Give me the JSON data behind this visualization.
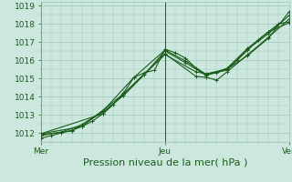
{
  "title": "",
  "xlabel": "Pression niveau de la mer( hPa )",
  "ylabel": "",
  "bg_color": "#cce8de",
  "grid_color": "#9dc4b8",
  "line_color": "#1a5c1a",
  "ylim": [
    1011.5,
    1019.2
  ],
  "xlim": [
    0,
    48
  ],
  "xtick_positions": [
    0,
    24,
    48
  ],
  "xtick_labels": [
    "Mer",
    "Jeu",
    "Ven"
  ],
  "ytick_positions": [
    1012,
    1013,
    1014,
    1015,
    1016,
    1017,
    1018,
    1019
  ],
  "vline_positions": [
    0,
    24,
    48
  ],
  "series": [
    [
      0.0,
      1011.7,
      2.0,
      1011.85,
      4.0,
      1012.0,
      6.0,
      1012.15,
      8.0,
      1012.35,
      10.0,
      1012.65,
      12.0,
      1013.05,
      14.0,
      1013.55,
      16.0,
      1014.2,
      18.0,
      1015.05,
      20.0,
      1015.3,
      22.0,
      1015.45,
      24.0,
      1016.6,
      26.0,
      1016.4,
      28.0,
      1016.1,
      30.0,
      1015.55,
      32.0,
      1015.2,
      34.0,
      1015.3,
      36.0,
      1015.5,
      38.0,
      1016.0,
      40.0,
      1016.55,
      42.0,
      1017.1,
      44.0,
      1017.55,
      46.0,
      1018.0,
      48.0,
      1018.1
    ],
    [
      0.0,
      1011.85,
      4.0,
      1012.05,
      8.0,
      1012.45,
      12.0,
      1013.15,
      16.0,
      1014.05,
      20.0,
      1015.2,
      24.0,
      1016.5,
      28.0,
      1015.85,
      32.0,
      1015.15,
      36.0,
      1015.55,
      40.0,
      1016.65,
      44.0,
      1017.55,
      48.0,
      1018.05
    ],
    [
      0.0,
      1011.9,
      6.0,
      1012.1,
      12.0,
      1013.2,
      18.0,
      1015.05,
      24.0,
      1016.55,
      28.0,
      1015.95,
      32.0,
      1015.2,
      36.0,
      1015.45,
      40.0,
      1016.6,
      44.0,
      1017.45,
      48.0,
      1018.45
    ],
    [
      0.0,
      1011.95,
      8.0,
      1012.35,
      16.0,
      1014.15,
      24.0,
      1016.35,
      30.0,
      1015.1,
      32.0,
      1015.05,
      34.0,
      1014.9,
      36.0,
      1015.35,
      40.0,
      1016.3,
      44.0,
      1017.25,
      48.0,
      1018.25
    ],
    [
      0.0,
      1011.95,
      12.0,
      1013.05,
      24.0,
      1016.3,
      30.0,
      1015.35,
      32.0,
      1015.25,
      36.0,
      1015.5,
      40.0,
      1016.25,
      44.0,
      1017.2,
      48.0,
      1018.65
    ]
  ],
  "marker": "+",
  "markersize": 3,
  "linewidth": 0.8,
  "fontsize_label": 8,
  "fontsize_tick": 6.5
}
